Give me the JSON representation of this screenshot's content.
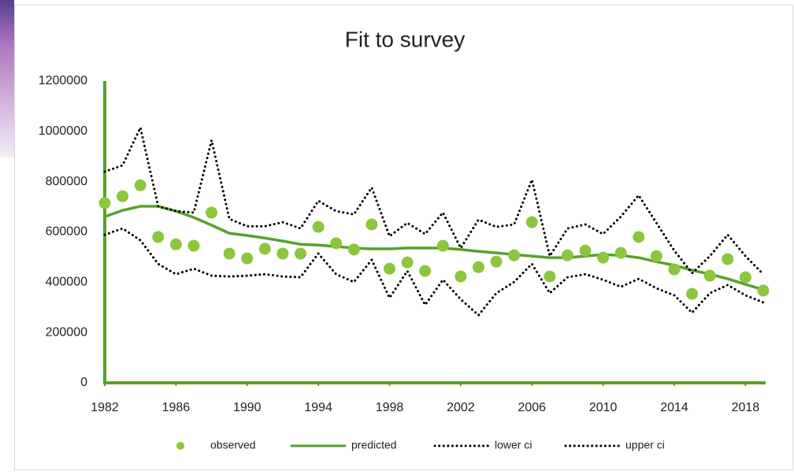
{
  "chart_data": {
    "type": "line",
    "title": "Fit to survey",
    "x": [
      1982,
      1983,
      1984,
      1985,
      1986,
      1987,
      1988,
      1989,
      1990,
      1991,
      1992,
      1993,
      1994,
      1995,
      1996,
      1997,
      1998,
      1999,
      2000,
      2001,
      2002,
      2003,
      2004,
      2005,
      2006,
      2007,
      2008,
      2009,
      2010,
      2011,
      2012,
      2013,
      2014,
      2015,
      2016,
      2017,
      2018,
      2019
    ],
    "series": [
      {
        "name": "observed",
        "color": "#8cc63f",
        "style": "dots",
        "values": [
          715000,
          742000,
          786000,
          580000,
          551000,
          545000,
          677000,
          514000,
          495000,
          533000,
          514000,
          514000,
          620000,
          555000,
          530000,
          630000,
          454000,
          479000,
          445000,
          545000,
          423000,
          460000,
          482000,
          507000,
          639000,
          423000,
          507000,
          526000,
          498000,
          517000,
          580000,
          504000,
          451000,
          354000,
          426000,
          492000,
          420000,
          367000
        ]
      },
      {
        "name": "predicted",
        "color": "#5aa02c",
        "style": "solid",
        "values": [
          661000,
          686000,
          702000,
          702000,
          683000,
          658000,
          627000,
          595000,
          586000,
          576000,
          564000,
          551000,
          548000,
          542000,
          536000,
          533000,
          533000,
          536000,
          536000,
          536000,
          530000,
          523000,
          517000,
          510000,
          504000,
          498000,
          498000,
          504000,
          510000,
          507000,
          498000,
          482000,
          467000,
          448000,
          432000,
          414000,
          392000,
          370000
        ]
      },
      {
        "name": "lower ci",
        "color": "#000000",
        "style": "dotted",
        "values": [
          589000,
          614000,
          567000,
          473000,
          432000,
          454000,
          426000,
          423000,
          426000,
          432000,
          423000,
          420000,
          514000,
          432000,
          401000,
          489000,
          338000,
          445000,
          310000,
          410000,
          332000,
          269000,
          357000,
          401000,
          473000,
          357000,
          420000,
          432000,
          410000,
          382000,
          414000,
          376000,
          348000,
          279000,
          357000,
          389000,
          348000,
          320000
        ]
      },
      {
        "name": "upper ci",
        "color": "#000000",
        "style": "dotted",
        "values": [
          840000,
          865000,
          1015000,
          702000,
          683000,
          677000,
          965000,
          652000,
          623000,
          623000,
          639000,
          614000,
          724000,
          683000,
          670000,
          777000,
          583000,
          636000,
          592000,
          677000,
          536000,
          649000,
          620000,
          630000,
          808000,
          504000,
          614000,
          630000,
          592000,
          661000,
          746000,
          636000,
          526000,
          436000,
          504000,
          589000,
          504000,
          432000
        ]
      }
    ],
    "xlim": [
      1982,
      2019
    ],
    "xticks": [
      1982,
      1986,
      1990,
      1994,
      1998,
      2002,
      2006,
      2010,
      2014,
      2018
    ],
    "ylim": [
      0,
      1200000
    ],
    "yticks": [
      0,
      200000,
      400000,
      600000,
      800000,
      1000000,
      1200000
    ],
    "axis_color": "#5aa02c",
    "legend": "bottom"
  }
}
